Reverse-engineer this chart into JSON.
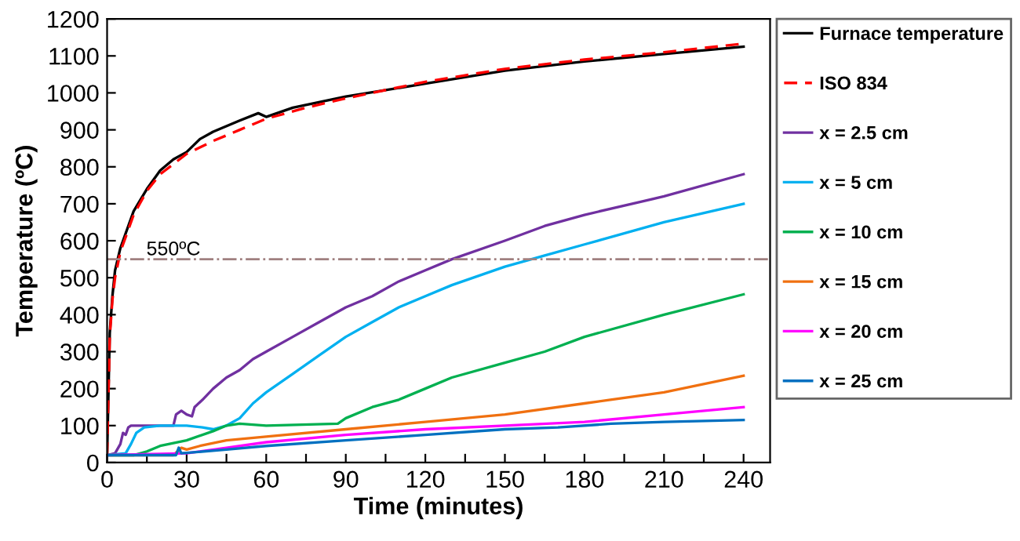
{
  "chart_data": {
    "type": "line",
    "xlabel": "Time (minutes)",
    "ylabel": "Temperature (ºC)",
    "xlim": [
      0,
      250
    ],
    "ylim": [
      0,
      1200
    ],
    "xticks": [
      0,
      {
        "value": 15,
        "label": null
      },
      30,
      {
        "value": 45,
        "label": null
      },
      60,
      {
        "value": 75,
        "label": null
      },
      90,
      {
        "value": 105,
        "label": null
      },
      120,
      {
        "value": 135,
        "label": null
      },
      150,
      {
        "value": 165,
        "label": null
      },
      180,
      {
        "value": 195,
        "label": null
      },
      210,
      {
        "value": 225,
        "label": null
      },
      240
    ],
    "yticks": [
      0,
      100,
      200,
      300,
      400,
      500,
      600,
      700,
      800,
      900,
      1000,
      1100,
      1200
    ],
    "grid": false,
    "legend": "right",
    "marker": "none",
    "ref_lines": [
      {
        "axis": "y",
        "value": 550,
        "label": "550ºC",
        "color": "#a08080",
        "line_style": "dashdot"
      }
    ],
    "series": [
      {
        "name": "Furnace temperature",
        "color": "#000000",
        "line_style": "solid",
        "x": [
          0,
          1,
          2,
          3,
          5,
          10,
          15,
          20,
          25,
          30,
          35,
          40,
          50,
          57,
          60,
          70,
          90,
          120,
          150,
          180,
          210,
          240
        ],
        "values": [
          20,
          350,
          450,
          520,
          580,
          680,
          740,
          790,
          820,
          840,
          875,
          895,
          925,
          945,
          935,
          960,
          990,
          1025,
          1060,
          1085,
          1105,
          1125
        ]
      },
      {
        "name": "ISO 834",
        "color": "#ff0000",
        "line_style": "dashed",
        "x": [
          0,
          1,
          2,
          3,
          5,
          10,
          15,
          20,
          30,
          40,
          50,
          60,
          75,
          90,
          120,
          150,
          180,
          210,
          240
        ],
        "values": [
          20,
          340,
          440,
          500,
          570,
          670,
          735,
          780,
          835,
          870,
          900,
          930,
          960,
          985,
          1030,
          1065,
          1090,
          1110,
          1133
        ]
      },
      {
        "name": "x = 2.5 cm",
        "color": "#7030a0",
        "line_style": "solid",
        "x": [
          0,
          3,
          5,
          6,
          7,
          8,
          9,
          25,
          26,
          28,
          30,
          32,
          33,
          36,
          40,
          45,
          50,
          55,
          60,
          70,
          80,
          90,
          100,
          110,
          120,
          130,
          150,
          165,
          180,
          210,
          240
        ],
        "values": [
          20,
          25,
          50,
          80,
          75,
          95,
          100,
          100,
          130,
          140,
          130,
          125,
          150,
          170,
          200,
          230,
          250,
          280,
          300,
          340,
          380,
          420,
          450,
          490,
          520,
          550,
          600,
          640,
          670,
          720,
          780
        ]
      },
      {
        "name": "x = 5 cm",
        "color": "#00b0f0",
        "line_style": "solid",
        "x": [
          0,
          7,
          9,
          11,
          14,
          20,
          30,
          36,
          40,
          45,
          50,
          55,
          60,
          70,
          80,
          90,
          100,
          110,
          120,
          130,
          150,
          165,
          180,
          210,
          240
        ],
        "values": [
          20,
          25,
          50,
          80,
          95,
          100,
          100,
          95,
          90,
          100,
          120,
          160,
          190,
          240,
          290,
          340,
          380,
          420,
          450,
          480,
          530,
          560,
          590,
          650,
          700
        ]
      },
      {
        "name": "x = 10 cm",
        "color": "#00b050",
        "line_style": "solid",
        "x": [
          0,
          10,
          15,
          20,
          30,
          40,
          45,
          50,
          60,
          87,
          90,
          100,
          110,
          120,
          130,
          150,
          165,
          180,
          210,
          240
        ],
        "values": [
          20,
          20,
          30,
          45,
          60,
          85,
          100,
          105,
          100,
          105,
          120,
          150,
          170,
          200,
          230,
          270,
          300,
          340,
          400,
          455
        ]
      },
      {
        "name": "x = 15 cm",
        "color": "#f07010",
        "line_style": "solid",
        "x": [
          0,
          25,
          28,
          30,
          35,
          45,
          60,
          90,
          120,
          150,
          180,
          210,
          240
        ],
        "values": [
          20,
          20,
          40,
          35,
          45,
          60,
          70,
          90,
          110,
          130,
          160,
          190,
          235
        ]
      },
      {
        "name": "x = 20 cm",
        "color": "#ff00ff",
        "line_style": "solid",
        "x": [
          0,
          30,
          45,
          60,
          90,
          120,
          150,
          180,
          210,
          240
        ],
        "values": [
          20,
          25,
          40,
          55,
          75,
          90,
          100,
          110,
          130,
          150
        ]
      },
      {
        "name": "x = 25 cm",
        "color": "#0070c0",
        "line_style": "solid",
        "x": [
          0,
          26,
          27,
          28,
          45,
          60,
          90,
          120,
          150,
          170,
          190,
          210,
          240
        ],
        "values": [
          20,
          20,
          40,
          25,
          35,
          45,
          60,
          75,
          90,
          95,
          105,
          110,
          115
        ]
      }
    ]
  }
}
